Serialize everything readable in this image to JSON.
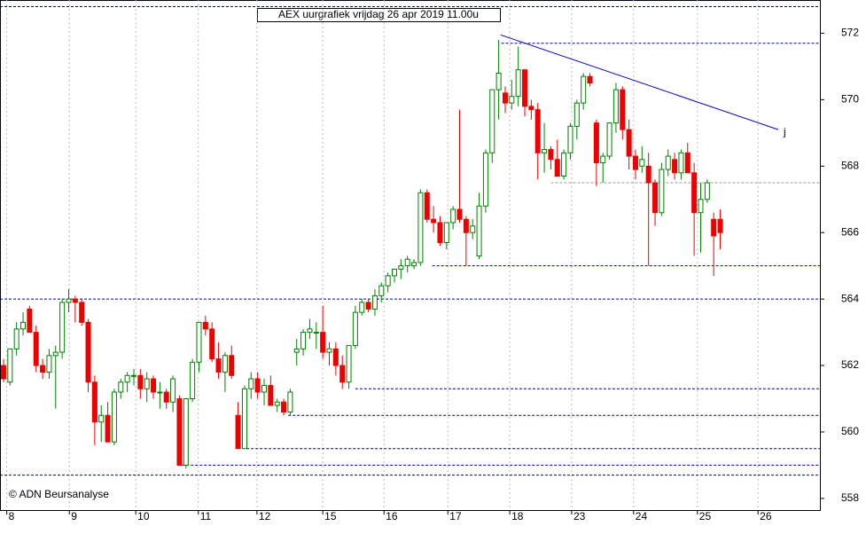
{
  "chart_data": {
    "type": "candlestick",
    "title": "AEX uurgrafiek vrijdag 26 apr 2019 11.00u",
    "footer": "© ADN Beursanalyse",
    "up_color": "#008000",
    "down_color": "#ee0000",
    "xlim": [
      -0.54,
      125.3
    ],
    "ylim": [
      557.65,
      573.0
    ],
    "yticks": [
      558,
      560,
      562,
      564,
      566,
      568,
      570,
      572
    ],
    "xticks": [
      {
        "value": 0.5,
        "label": "8"
      },
      {
        "value": 10.1,
        "label": "9"
      },
      {
        "value": 20.3,
        "label": "10"
      },
      {
        "value": 29.9,
        "label": "11"
      },
      {
        "value": 38.9,
        "label": "12"
      },
      {
        "value": 49,
        "label": "15"
      },
      {
        "value": 58.4,
        "label": "16"
      },
      {
        "value": 68.2,
        "label": "17"
      },
      {
        "value": 77.7,
        "label": "18"
      },
      {
        "value": 87.2,
        "label": "23"
      },
      {
        "value": 96.7,
        "label": "24"
      },
      {
        "value": 106.5,
        "label": "25"
      },
      {
        "value": 115.8,
        "label": "26"
      }
    ],
    "grid": true,
    "levels": [
      {
        "value": 572.8,
        "from": -0.54,
        "color": "#0000aa"
      },
      {
        "value": 571.7,
        "from": 76.4,
        "color": "#0000aa"
      },
      {
        "value": 567.5,
        "from": 84,
        "color": "#999999"
      },
      {
        "value": 565.0,
        "from": 65.8,
        "color": "#0000aa"
      },
      {
        "value": 564.0,
        "from": -0.54,
        "color": "#0000aa"
      },
      {
        "value": 561.3,
        "from": 54,
        "color": "#0000aa"
      },
      {
        "value": 560.5,
        "from": 43.7,
        "color": "#0000aa"
      },
      {
        "value": 559.5,
        "from": 37.3,
        "color": "#0000aa"
      },
      {
        "value": 559.0,
        "from": 26.7,
        "color": "#0000aa"
      },
      {
        "value": 558.7,
        "from": -0.54,
        "color": "#0000aa"
      }
    ],
    "trendline": {
      "x": [
        76.3,
        118.9
      ],
      "y": [
        571.95,
        569.1
      ],
      "label": "j",
      "color": "#0000cc"
    },
    "candles": [
      [
        562.0,
        562.2,
        561.5,
        561.6
      ],
      [
        561.5,
        562.5,
        561.4,
        562.5
      ],
      [
        562.5,
        563.3,
        562.3,
        563.1
      ],
      [
        563.1,
        563.6,
        562.9,
        563.3
      ],
      [
        563.7,
        563.8,
        563.0,
        563.0
      ],
      [
        563.0,
        563.2,
        561.8,
        562.0
      ],
      [
        562.0,
        562.2,
        561.6,
        561.8
      ],
      [
        561.8,
        562.5,
        561.6,
        562.3
      ],
      [
        562.3,
        562.6,
        560.7,
        562.4
      ],
      [
        562.4,
        564.0,
        562.2,
        563.9
      ],
      [
        563.9,
        564.3,
        563.6,
        564.0
      ],
      [
        564.0,
        564.1,
        563.3,
        563.9
      ],
      [
        563.9,
        564.0,
        563.2,
        563.3
      ],
      [
        563.3,
        563.4,
        561.2,
        561.5
      ],
      [
        561.5,
        561.7,
        559.6,
        560.3
      ],
      [
        560.3,
        560.8,
        559.7,
        560.5
      ],
      [
        560.5,
        560.9,
        559.7,
        559.7
      ],
      [
        559.7,
        561.3,
        559.6,
        561.2
      ],
      [
        561.2,
        561.6,
        561.0,
        561.5
      ],
      [
        561.5,
        561.8,
        561.2,
        561.7
      ],
      [
        561.7,
        561.9,
        561.4,
        561.7
      ],
      [
        561.7,
        561.9,
        561.0,
        561.3
      ],
      [
        561.3,
        561.8,
        560.9,
        561.6
      ],
      [
        561.6,
        561.7,
        561.0,
        561.2
      ],
      [
        561.2,
        561.5,
        560.7,
        561.2
      ],
      [
        561.2,
        561.3,
        560.7,
        560.9
      ],
      [
        560.9,
        561.7,
        560.6,
        561.6
      ],
      [
        561.0,
        561.1,
        559.0,
        559.0
      ],
      [
        559.0,
        561.0,
        558.9,
        561.0
      ],
      [
        561.0,
        562.2,
        560.9,
        562.1
      ],
      [
        562.1,
        563.3,
        561.8,
        563.3
      ],
      [
        563.3,
        563.5,
        562.9,
        563.1
      ],
      [
        563.1,
        563.3,
        562.1,
        562.2
      ],
      [
        562.2,
        562.7,
        561.6,
        561.8
      ],
      [
        561.8,
        562.4,
        561.2,
        562.3
      ],
      [
        562.3,
        562.6,
        561.6,
        561.7
      ],
      [
        560.5,
        560.9,
        559.5,
        559.5
      ],
      [
        559.5,
        561.4,
        559.5,
        561.3
      ],
      [
        561.3,
        561.8,
        561.0,
        561.6
      ],
      [
        561.6,
        561.8,
        561.0,
        561.2
      ],
      [
        561.2,
        561.6,
        560.8,
        561.4
      ],
      [
        561.4,
        561.7,
        560.8,
        560.8
      ],
      [
        560.8,
        561.0,
        560.6,
        560.9
      ],
      [
        560.9,
        561.0,
        560.5,
        560.6
      ],
      [
        560.6,
        561.3,
        560.5,
        561.2
      ],
      [
        562.4,
        562.8,
        562.0,
        562.5
      ],
      [
        562.5,
        563.1,
        562.3,
        563.0
      ],
      [
        563.0,
        563.4,
        562.8,
        563.1
      ],
      [
        563.0,
        563.3,
        562.5,
        563.0
      ],
      [
        563.0,
        563.8,
        562.2,
        562.4
      ],
      [
        562.4,
        562.7,
        562.0,
        562.5
      ],
      [
        562.5,
        562.7,
        561.7,
        562.0
      ],
      [
        562.0,
        562.3,
        561.3,
        561.5
      ],
      [
        561.5,
        562.6,
        561.3,
        562.6
      ],
      [
        562.6,
        563.8,
        562.5,
        563.6
      ],
      [
        563.6,
        564.0,
        563.5,
        563.9
      ],
      [
        563.9,
        564.0,
        563.6,
        563.7
      ],
      [
        563.7,
        564.3,
        563.5,
        564.1
      ],
      [
        564.1,
        564.5,
        563.9,
        564.4
      ],
      [
        564.4,
        564.8,
        564.2,
        564.7
      ],
      [
        564.7,
        564.9,
        564.5,
        564.9
      ],
      [
        564.9,
        565.2,
        564.6,
        565.0
      ],
      [
        565.0,
        565.3,
        564.8,
        565.2
      ],
      [
        565.0,
        565.2,
        564.9,
        565.1
      ],
      [
        565.1,
        567.3,
        565.0,
        567.2
      ],
      [
        567.2,
        567.3,
        566.3,
        566.4
      ],
      [
        566.4,
        566.8,
        566.0,
        566.3
      ],
      [
        566.3,
        566.5,
        565.6,
        565.7
      ],
      [
        565.7,
        566.3,
        565.5,
        566.3
      ],
      [
        566.3,
        566.8,
        566.1,
        566.7
      ],
      [
        566.7,
        569.7,
        566.3,
        566.4
      ],
      [
        566.4,
        566.5,
        565.0,
        566.0
      ],
      [
        566.0,
        566.4,
        565.8,
        566.2
      ],
      [
        565.3,
        567.2,
        565.2,
        566.8
      ],
      [
        566.8,
        568.5,
        566.6,
        568.4
      ],
      [
        568.4,
        570.3,
        568.1,
        570.3
      ],
      [
        570.3,
        571.8,
        569.4,
        570.8
      ],
      [
        570.2,
        570.4,
        569.6,
        569.9
      ],
      [
        569.9,
        570.6,
        569.7,
        570.1
      ],
      [
        570.1,
        571.6,
        569.8,
        570.9
      ],
      [
        570.9,
        570.9,
        569.5,
        569.8
      ],
      [
        569.8,
        570.0,
        569.4,
        569.7
      ],
      [
        569.7,
        569.9,
        567.6,
        568.4
      ],
      [
        568.4,
        569.3,
        567.8,
        568.5
      ],
      [
        568.5,
        568.6,
        567.9,
        568.2
      ],
      [
        568.2,
        568.8,
        567.7,
        567.7
      ],
      [
        567.7,
        568.5,
        567.6,
        568.4
      ],
      [
        568.4,
        569.3,
        568.2,
        569.2
      ],
      [
        569.2,
        570.0,
        568.8,
        569.9
      ],
      [
        569.9,
        570.8,
        569.7,
        570.7
      ],
      [
        570.7,
        570.8,
        570.4,
        570.5
      ],
      [
        569.3,
        569.4,
        567.4,
        568.1
      ],
      [
        568.1,
        568.4,
        567.5,
        568.3
      ],
      [
        568.3,
        569.3,
        568.2,
        569.3
      ],
      [
        569.3,
        570.5,
        569.0,
        570.3
      ],
      [
        570.3,
        570.4,
        568.8,
        569.1
      ],
      [
        569.1,
        569.4,
        567.9,
        568.3
      ],
      [
        568.3,
        568.5,
        567.6,
        567.9
      ],
      [
        568.0,
        568.6,
        567.8,
        568.2
      ],
      [
        568.0,
        568.4,
        565.0,
        567.5
      ],
      [
        567.5,
        567.6,
        566.2,
        566.6
      ],
      [
        566.6,
        568.1,
        566.5,
        567.9
      ],
      [
        567.9,
        568.5,
        567.7,
        568.3
      ],
      [
        568.2,
        568.4,
        567.6,
        567.8
      ],
      [
        567.8,
        568.5,
        567.6,
        568.4
      ],
      [
        568.4,
        568.7,
        567.8,
        567.8
      ],
      [
        567.8,
        568.1,
        565.3,
        566.6
      ],
      [
        566.6,
        567.5,
        565.4,
        567.0
      ],
      [
        567.0,
        567.6,
        566.9,
        567.5
      ],
      [
        566.4,
        566.6,
        564.7,
        565.9
      ],
      [
        566.4,
        566.7,
        565.5,
        566.0
      ]
    ]
  }
}
